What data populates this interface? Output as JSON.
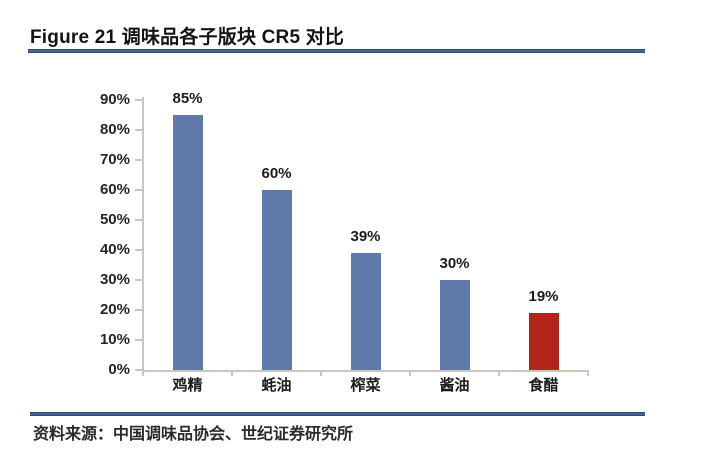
{
  "header": {
    "title": "Figure 21 调味品各子版块 CR5 对比"
  },
  "chart_data": {
    "type": "bar",
    "title": "Figure 21 调味品各子版块 CR5 对比",
    "categories": [
      "鸡精",
      "蚝油",
      "榨菜",
      "酱油",
      "食醋"
    ],
    "values": [
      85,
      60,
      39,
      30,
      19
    ],
    "value_labels": [
      "85%",
      "60%",
      "39%",
      "30%",
      "19%"
    ],
    "bar_colors": [
      "#5F79A8",
      "#5F79A8",
      "#5F79A8",
      "#5F79A8",
      "#B3241D"
    ],
    "y_ticks": [
      "0%",
      "10%",
      "20%",
      "30%",
      "40%",
      "50%",
      "60%",
      "70%",
      "80%",
      "90%"
    ],
    "ylim": [
      0,
      90
    ],
    "xlabel": "",
    "ylabel": "",
    "grid": false,
    "legend": false
  },
  "footer": {
    "source": "资料来源：中国调味品协会、世纪证券研究所"
  },
  "colors": {
    "accent_blue": "#5F79A8",
    "accent_red": "#B3241D",
    "divider_navy": "#2D4B70",
    "axis_gray": "#CBC7C0"
  }
}
